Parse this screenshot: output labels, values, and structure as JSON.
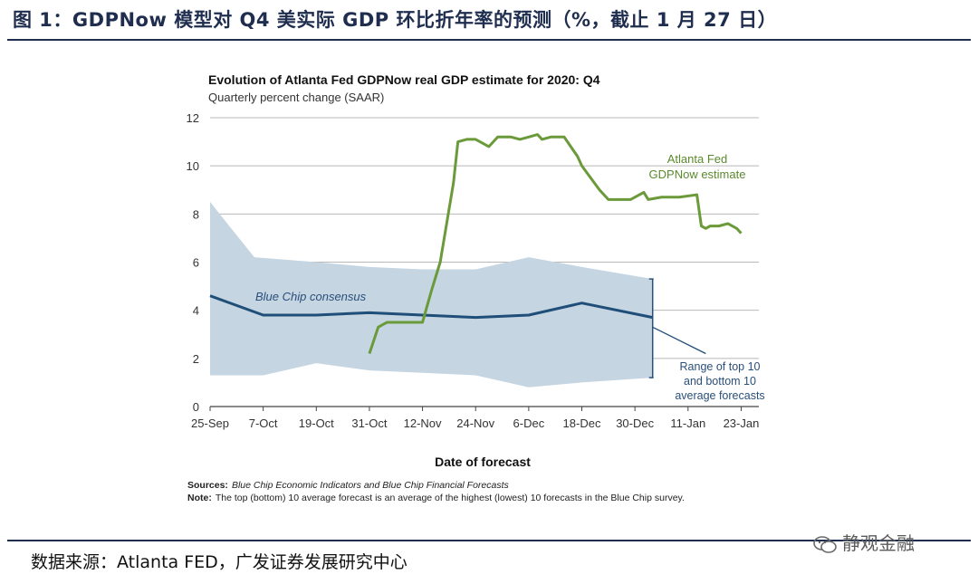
{
  "figure": {
    "title": "图 1：GDPNow 模型对 Q4 美实际 GDP 环比折年率的预测（%，截止 1 月 27 日）",
    "source": "数据来源：Atlanta FED，广发证券发展研究中心",
    "watermark": "静观金融"
  },
  "chart_data": {
    "type": "line",
    "title": "Evolution of Atlanta Fed GDPNow real GDP estimate for 2020: Q4",
    "subtitle": "Quarterly percent change (SAAR)",
    "xlabel": "Date of forecast",
    "ylabel": "",
    "ylim": [
      0,
      12
    ],
    "yticks": [
      0,
      2,
      4,
      6,
      8,
      10,
      12
    ],
    "xticks": [
      "25-Sep",
      "7-Oct",
      "19-Oct",
      "31-Oct",
      "12-Nov",
      "24-Nov",
      "6-Dec",
      "18-Dec",
      "30-Dec",
      "11-Jan",
      "23-Jan"
    ],
    "grid": true,
    "sources_label": "Sources:",
    "sources_text": "Blue Chip Economic Indicators and Blue Chip Financial Forecasts",
    "note_label": "Note:",
    "note_text": "The top (bottom) 10 average forecast is an average of the highest (lowest) 10 forecasts in the Blue Chip survey.",
    "annotations": {
      "gdpnow": [
        "Atlanta Fed",
        "GDPNow estimate"
      ],
      "consensus": "Blue Chip consensus",
      "range": [
        "Range of top 10",
        "and bottom 10",
        "average forecasts"
      ]
    },
    "colors": {
      "gdpnow": "#6a9a3a",
      "consensus": "#1f4e79",
      "band": "#c5d5e2",
      "range_bar": "#2a4f7a",
      "grid": "#b8b8b8"
    },
    "series": [
      {
        "name": "Atlanta Fed GDPNow estimate",
        "x": [
          36,
          38,
          39,
          40,
          42,
          48,
          50,
          52,
          55,
          56,
          58,
          59,
          60,
          63,
          65,
          67,
          68,
          70,
          72,
          74,
          75,
          77,
          80,
          83,
          84,
          86,
          88,
          90,
          91,
          92,
          95,
          98,
          99,
          102,
          106,
          110,
          111,
          112,
          113,
          115,
          117,
          119,
          120
        ],
        "values": [
          2.2,
          3.3,
          3.4,
          3.5,
          3.5,
          3.5,
          4.8,
          6.0,
          9.3,
          11.0,
          11.1,
          11.1,
          11.1,
          10.8,
          11.2,
          11.2,
          11.2,
          11.1,
          11.2,
          11.3,
          11.1,
          11.2,
          11.2,
          10.4,
          10.0,
          9.5,
          9.0,
          8.6,
          8.6,
          8.6,
          8.6,
          8.9,
          8.6,
          8.7,
          8.7,
          8.8,
          7.5,
          7.4,
          7.5,
          7.5,
          7.6,
          7.4,
          7.2
        ]
      },
      {
        "name": "Blue Chip consensus",
        "x": [
          0,
          12,
          24,
          36,
          48,
          60,
          72,
          84,
          100
        ],
        "values": [
          4.6,
          3.8,
          3.8,
          3.9,
          3.8,
          3.7,
          3.8,
          4.3,
          3.7
        ]
      },
      {
        "name": "Blue Chip consensus (projection)",
        "x": [
          100,
          112
        ],
        "values": [
          3.3,
          2.2
        ]
      },
      {
        "name": "Range of top 10 and bottom 10 average forecasts (upper)",
        "x": [
          0,
          10,
          24,
          36,
          48,
          60,
          72,
          84,
          100
        ],
        "values": [
          8.5,
          6.2,
          6.0,
          5.8,
          5.7,
          5.7,
          6.2,
          5.8,
          5.3
        ]
      },
      {
        "name": "Range of top 10 and bottom 10 average forecasts (lower)",
        "x": [
          0,
          12,
          24,
          36,
          48,
          60,
          72,
          84,
          100
        ],
        "values": [
          1.3,
          1.3,
          1.8,
          1.5,
          1.4,
          1.3,
          0.8,
          1.0,
          1.2
        ]
      }
    ]
  }
}
